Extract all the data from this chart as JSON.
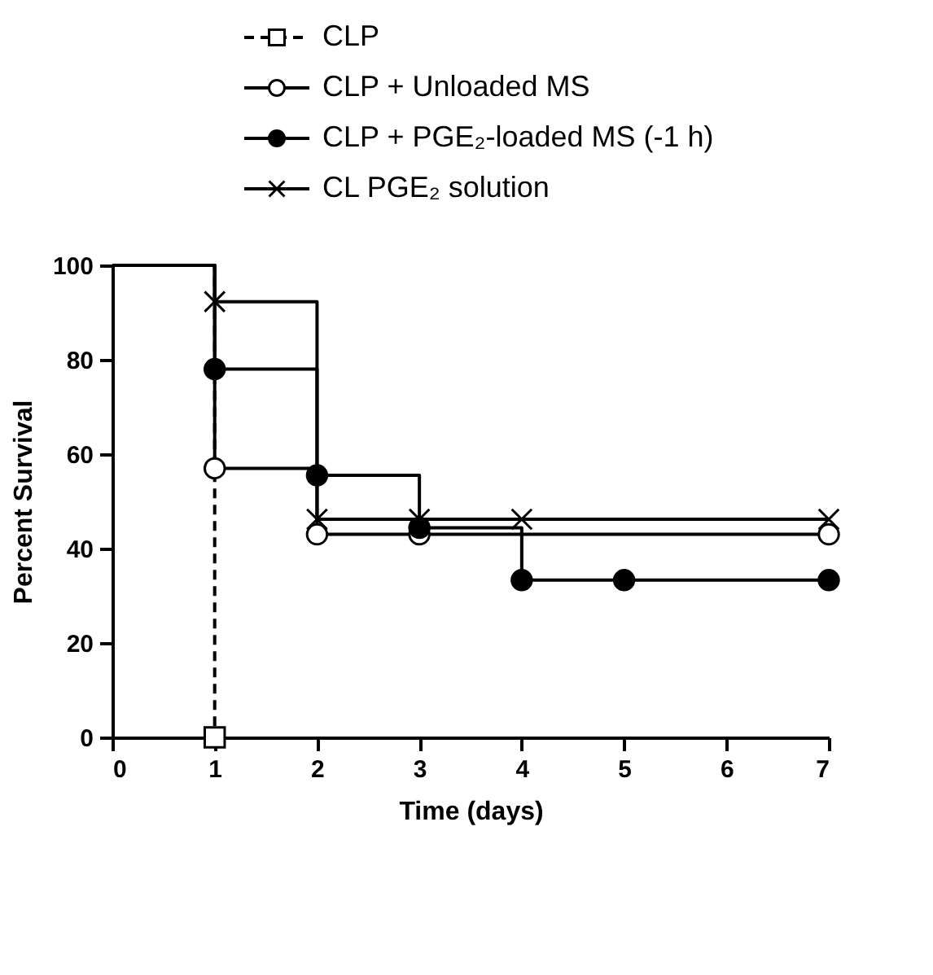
{
  "chart_data": {
    "type": "step",
    "xlabel": "Time (days)",
    "ylabel": "Percent Survival",
    "xlim": [
      0,
      7
    ],
    "ylim": [
      0,
      100
    ],
    "xticks": [
      0,
      1,
      2,
      3,
      4,
      5,
      6,
      7
    ],
    "yticks": [
      0,
      20,
      40,
      60,
      80,
      100
    ],
    "grid": false,
    "legend": "top",
    "series": [
      {
        "name": "CLP",
        "color": "#000000",
        "line_style": "dashed",
        "marker": "square",
        "x": [
          0,
          1
        ],
        "values": [
          100,
          0
        ]
      },
      {
        "name": "CLP + Unloaded MS",
        "color": "#000000",
        "line_style": "solid",
        "marker": "circle",
        "x": [
          0,
          1,
          2,
          3,
          7
        ],
        "values": [
          100,
          57,
          43,
          43,
          43
        ]
      },
      {
        "name": "CLP + PGE₂-loaded MS (-1 h)",
        "color": "#000000",
        "line_style": "solid",
        "marker": "circle",
        "x": [
          0,
          1,
          2,
          3,
          4,
          5,
          7
        ],
        "values": [
          100,
          78,
          55.5,
          44.4,
          33.3,
          33.3,
          33.3
        ]
      },
      {
        "name": "CL      PGE₂ solution",
        "color": "#000000",
        "line_style": "solid",
        "marker": "cross",
        "x": [
          0,
          1,
          2,
          3,
          4,
          7
        ],
        "values": [
          100,
          92.3,
          46.2,
          46.2,
          46.2,
          46.2
        ]
      }
    ]
  }
}
